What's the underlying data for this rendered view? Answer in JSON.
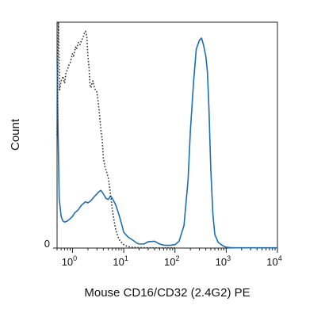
{
  "chart_data": {
    "type": "line",
    "title": "",
    "xlabel": "Mouse CD16/CD32 (2.4G2) PE",
    "ylabel": "Count",
    "x_scale": "log",
    "xlim": [
      0.5,
      10000
    ],
    "ylim": [
      0,
      100
    ],
    "grid": false,
    "legend": "none",
    "x_ticks": [
      {
        "value": 1,
        "base": "10",
        "exp": "0"
      },
      {
        "value": 10,
        "base": "10",
        "exp": "1"
      },
      {
        "value": 100,
        "base": "10",
        "exp": "2"
      },
      {
        "value": 1000,
        "base": "10",
        "exp": "3"
      },
      {
        "value": 10000,
        "base": "10",
        "exp": "4"
      }
    ],
    "y_ticks": [
      {
        "value": 0,
        "label": "0"
      }
    ],
    "series": [
      {
        "color": "#1a6fb5",
        "style": "solid",
        "x": [
          0.5,
          0.52,
          0.55,
          0.6,
          0.65,
          0.7,
          0.8,
          0.9,
          1.0,
          1.1,
          1.3,
          1.5,
          1.8,
          2.0,
          2.3,
          2.6,
          3.0,
          3.3,
          3.6,
          4.0,
          4.5,
          5.0,
          5.5,
          6.0,
          7.0,
          8.0,
          9.0,
          10,
          12,
          15,
          18,
          20,
          25,
          30,
          40,
          50,
          60,
          70,
          80,
          100,
          120,
          150,
          180,
          200,
          230,
          260,
          300,
          330,
          360,
          400,
          430,
          460,
          500,
          550,
          600,
          700,
          800,
          900,
          1000,
          1200,
          1500,
          2000,
          3000,
          5000,
          10000
        ],
        "y": [
          85,
          55,
          22,
          14,
          12,
          11.5,
          12,
          13,
          14,
          15.5,
          17,
          19,
          20.5,
          20,
          21,
          22.5,
          24,
          25,
          25.5,
          24,
          22,
          21.5,
          23,
          22,
          19,
          15,
          11,
          7,
          5,
          3.5,
          2.2,
          1.8,
          1.8,
          2.8,
          3,
          1.8,
          1.3,
          1.2,
          1.2,
          1.5,
          3,
          10,
          30,
          52,
          73,
          88,
          92,
          93,
          90,
          85,
          78,
          62,
          35,
          15,
          6,
          2.5,
          1.5,
          0.8,
          0.4,
          0.2,
          0.1,
          0.1,
          0.1,
          0.1,
          0.1
        ]
      },
      {
        "color": "#333333",
        "style": "dotted",
        "x": [
          0.5,
          0.53,
          0.56,
          0.6,
          0.65,
          0.7,
          0.75,
          0.8,
          0.85,
          0.9,
          0.95,
          1.0,
          1.05,
          1.1,
          1.15,
          1.2,
          1.3,
          1.4,
          1.5,
          1.6,
          1.7,
          1.8,
          1.9,
          2.0,
          2.1,
          2.2,
          2.3,
          2.4,
          2.5,
          2.6,
          2.8,
          3.0,
          3.2,
          3.4,
          3.6,
          3.8,
          4.0,
          4.3,
          4.6,
          5.0,
          5.5,
          6.0,
          6.5,
          7.0,
          7.5,
          8.0,
          9.0,
          10,
          11,
          13,
          15,
          20,
          30,
          50,
          100
        ],
        "y": [
          50,
          100,
          70,
          74,
          76,
          73,
          78,
          79,
          81,
          82,
          84,
          86,
          85,
          87,
          89,
          88,
          91,
          90,
          92,
          93,
          95,
          96,
          94,
          85,
          80,
          72,
          71,
          73,
          74,
          72,
          70,
          69,
          64,
          58,
          52,
          48,
          40,
          36,
          34,
          31,
          24,
          17,
          12,
          8,
          6,
          4,
          2.5,
          1.5,
          1,
          0.5,
          0.3,
          0.2,
          0.1,
          0.1,
          0.1
        ]
      }
    ]
  }
}
